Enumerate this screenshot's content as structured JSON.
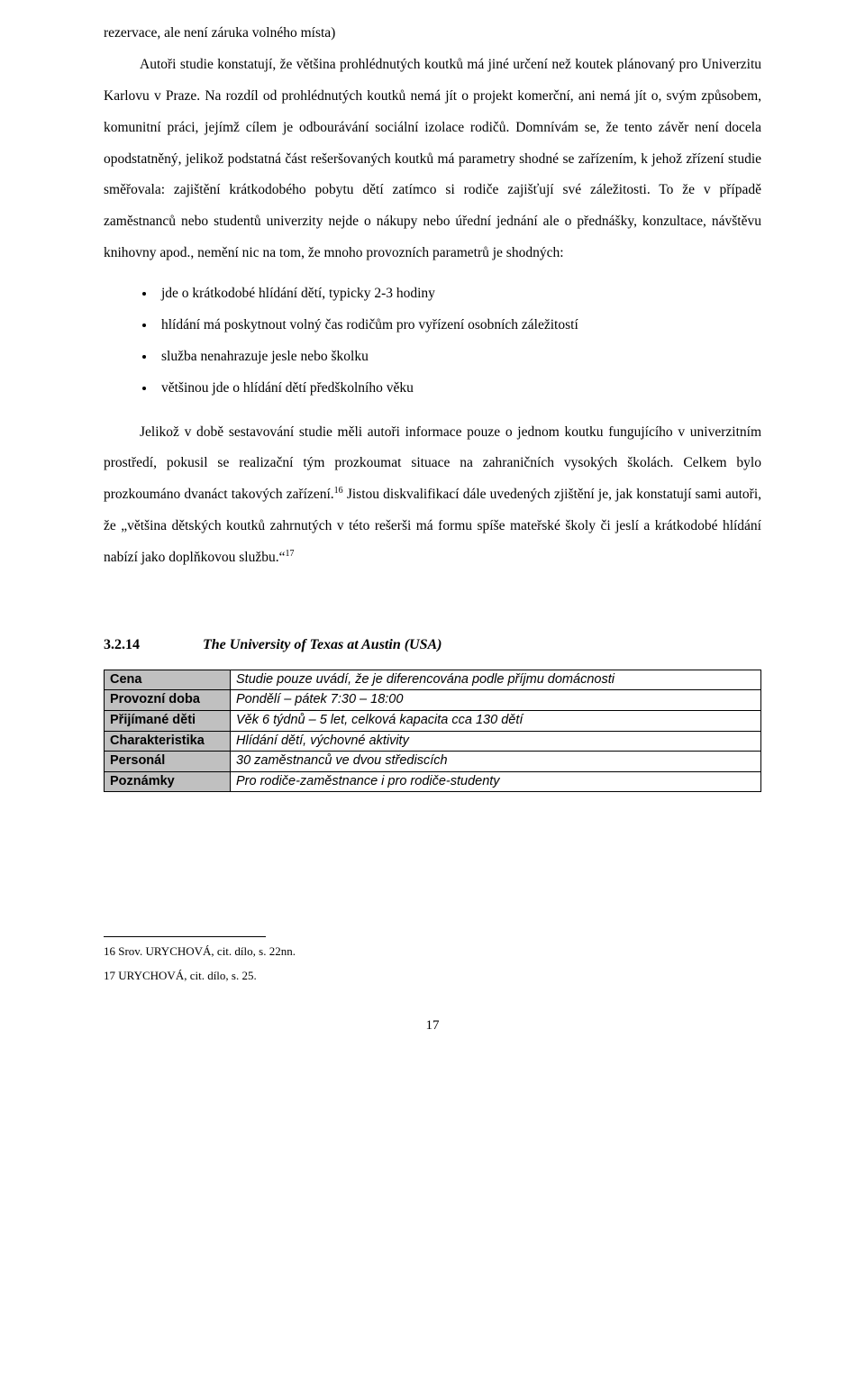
{
  "page": {
    "p_lead": "rezervace, ale není záruka volného místa)",
    "p1": "Autoři studie konstatují, že většina prohlédnutých koutků má jiné určení než koutek plánovaný pro Univerzitu Karlovu v Praze. Na rozdíl od prohlédnutých koutků nemá jít o projekt komerční, ani nemá jít o, svým způsobem, komunitní práci, jejímž cílem je odbourávání sociální izolace rodičů. Domnívám se, že tento závěr není docela opodstatněný, jelikož podstatná část rešeršovaných koutků má parametry shodné se zařízením, k jehož zřízení studie směřovala: zajištění krátkodobého pobytu dětí zatímco si rodiče zajišťují své záležitosti. To že v případě zaměstnanců nebo studentů univerzity nejde o nákupy nebo úřední jednání ale o přednášky, konzultace, návštěvu knihovny apod., nemění nic na tom, že mnoho provozních parametrů je shodných:",
    "bullets": [
      "jde o krátkodobé hlídání dětí, typicky 2-3 hodiny",
      "hlídání má poskytnout volný čas rodičům pro vyřízení osobních záležitostí",
      "služba nenahrazuje jesle nebo školku",
      "většinou jde o hlídání dětí předškolního věku"
    ],
    "p2_a": "Jelikož v době sestavování studie měli autoři informace pouze o jednom koutku fungujícího v univerzitním prostředí, pokusil se realizační tým prozkoumat situace na zahraničních vysokých školách. Celkem bylo prozkoumáno dvanáct takových zařízení.",
    "fn16_mark": "16",
    "p2_b": " Jistou diskvalifikací dále uvedených zjištění je, jak konstatují sami autoři, že „většina dětských koutků zahrnutých v této rešerši má formu spíše mateřské školy či jeslí a krátkodobé hlídání nabízí jako doplňkovou službu.“",
    "fn17_mark": "17"
  },
  "section": {
    "number": "3.2.14",
    "title": "The University of Texas at Austin (USA)"
  },
  "table": {
    "rows": [
      {
        "label": "Cena",
        "value": "Studie pouze uvádí, že je diferencována podle příjmu domácnosti"
      },
      {
        "label": "Provozní doba",
        "value": "Pondělí – pátek 7:30 – 18:00"
      },
      {
        "label": "Přijímané děti",
        "value": "Věk 6 týdnů – 5 let, celková kapacita cca 130 dětí"
      },
      {
        "label": "Charakteristika",
        "value": "Hlídání dětí, výchovné aktivity"
      },
      {
        "label": "Personál",
        "value": "30 zaměstnanců ve dvou střediscích"
      },
      {
        "label": "Poznámky",
        "value": "Pro rodiče-zaměstnance i pro rodiče-studenty"
      }
    ]
  },
  "footnotes": {
    "fn16": "16 Srov. URYCHOVÁ, cit. dílo, s. 22nn.",
    "fn17": "17 URYCHOVÁ, cit. dílo, s. 25."
  },
  "page_number": "17"
}
